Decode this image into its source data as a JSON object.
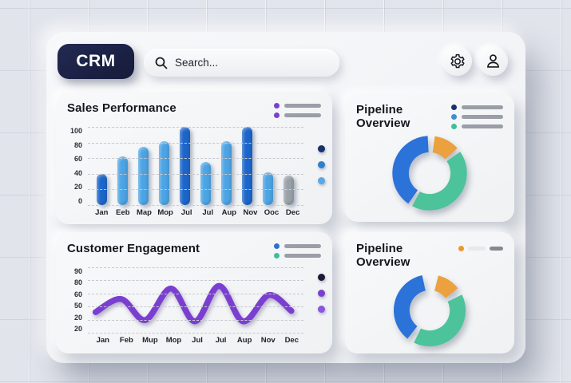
{
  "topbar": {
    "logo": "CRM",
    "search_placeholder": "Search..."
  },
  "cards": {
    "sales": {
      "title": "Sales Performance"
    },
    "pipeline_top": {
      "title": "Pipeline Overview"
    },
    "engagement": {
      "title": "Customer Engagement"
    },
    "pipeline_bottom": {
      "title": "Pipeline Overview"
    }
  },
  "chart_data": [
    {
      "id": "sales-bars",
      "type": "bar",
      "title": "Sales Performance",
      "categories": [
        "Jan",
        "Eeb",
        "Map",
        "Mop",
        "Jul",
        "Jul",
        "Aup",
        "Nov",
        "Ooc",
        "Dec"
      ],
      "values": [
        40,
        62,
        75,
        82,
        100,
        55,
        82,
        100,
        42,
        38
      ],
      "bar_colors": [
        "#1d66c9",
        "#4da4e4",
        "#4da4e4",
        "#4da4e4",
        "#1d66c9",
        "#4da4e4",
        "#4da4e4",
        "#1d66c9",
        "#4da4e4",
        "#9aa0a8"
      ],
      "yticks": [
        "100",
        "80",
        "60",
        "40",
        "20",
        "0"
      ],
      "ylim": [
        0,
        100
      ],
      "grid": "dashed-horizontal",
      "legend_dots": [
        "#7a3fd1",
        "#7a3fd1"
      ],
      "legend_bar_widths": [
        46,
        46
      ],
      "side_dots": [
        "#16316d",
        "#2e7fd0",
        "#58a9e8"
      ]
    },
    {
      "id": "pipeline-top",
      "type": "donut",
      "title": "Pipeline Overview",
      "segments": [
        {
          "name": "blue",
          "color": "#2b72d9",
          "start": 215,
          "end": 357
        },
        {
          "name": "orange",
          "color": "#eaa13e",
          "start": 8,
          "end": 48
        },
        {
          "name": "green",
          "color": "#4cc39a",
          "start": 55,
          "end": 208
        }
      ],
      "legend_dots": [
        "#16316d",
        "#3e8ed6",
        "#3fbf9a"
      ],
      "legend_bar_widths": [
        52,
        52,
        52
      ]
    },
    {
      "id": "engagement-line",
      "type": "line",
      "title": "Customer Engagement",
      "categories": [
        "Jan",
        "Feb",
        "Mup",
        "Mop",
        "Jul",
        "Jul",
        "Aup",
        "Nov",
        "Dec"
      ],
      "yticks": [
        "90",
        "80",
        "60",
        "50",
        "20",
        "20"
      ],
      "line_color": "#7a3fd1",
      "points": [
        [
          6,
          66
        ],
        [
          40,
          46
        ],
        [
          72,
          78
        ],
        [
          106,
          30
        ],
        [
          138,
          80
        ],
        [
          170,
          26
        ],
        [
          202,
          80
        ],
        [
          236,
          40
        ],
        [
          266,
          64
        ]
      ],
      "grid": "dashed-horizontal",
      "legend_dots": [
        "#2d6fd1",
        "#3fbf9a"
      ],
      "legend_bar_widths": [
        46,
        46
      ],
      "side_dots": [
        "#181a38",
        "#7a3fd1",
        "#8b55e0"
      ]
    },
    {
      "id": "pipeline-bottom",
      "type": "donut",
      "title": "Pipeline Overview",
      "segments": [
        {
          "name": "blue",
          "color": "#2b72d9",
          "start": 218,
          "end": 348
        },
        {
          "name": "orange",
          "color": "#eaa13e",
          "start": 14,
          "end": 52
        },
        {
          "name": "green",
          "color": "#4cc39a",
          "start": 64,
          "end": 206
        }
      ],
      "legend_inline": {
        "dot": "#e8992f",
        "pill": "#e7e8ea",
        "dash": "#85888f"
      }
    }
  ]
}
